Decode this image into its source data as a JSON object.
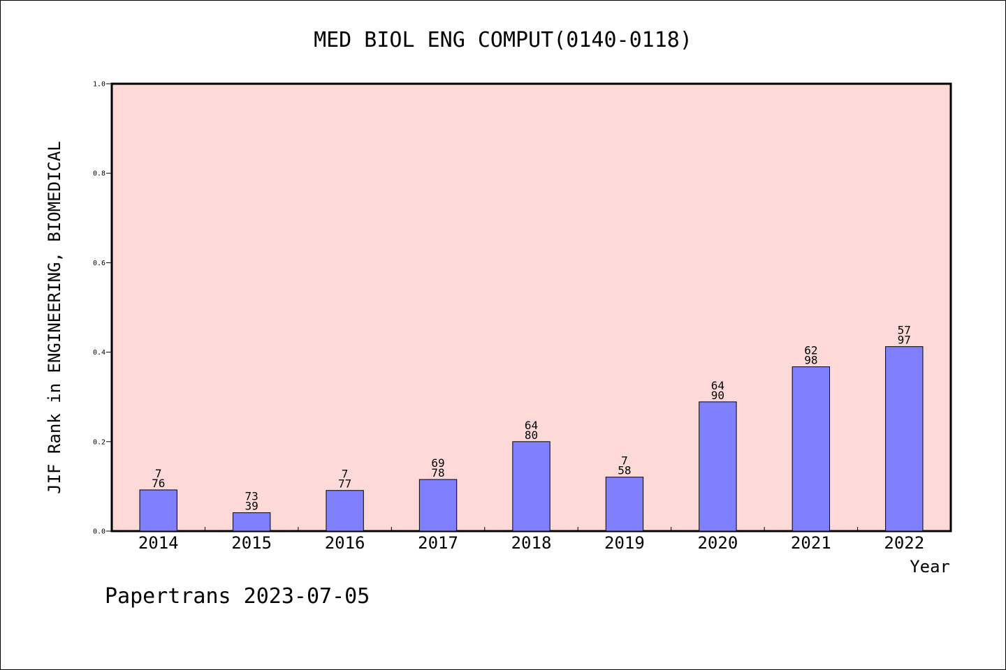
{
  "chart_data": {
    "type": "bar",
    "title": "MED BIOL ENG COMPUT(0140-0118)",
    "ylabel": "JIF Rank in ENGINEERING, BIOMEDICAL",
    "xlabel": "Year",
    "ylim": [
      0,
      1.0
    ],
    "yticks": [
      "0.0",
      "0.2",
      "0.4",
      "0.6",
      "0.8",
      "1.0"
    ],
    "ytick_values": [
      0,
      0.2,
      0.4,
      0.6,
      0.8,
      1.0
    ],
    "categories": [
      "2014",
      "2015",
      "2016",
      "2017",
      "2018",
      "2019",
      "2020",
      "2021",
      "2022"
    ],
    "values": [
      0.0921,
      0.0411,
      0.0909,
      0.1154,
      0.2,
      0.1207,
      0.2889,
      0.3673,
      0.4124
    ],
    "bar_labels": [
      [
        "7",
        "76"
      ],
      [
        "73",
        "39"
      ],
      [
        "7",
        "77"
      ],
      [
        "69",
        "78"
      ],
      [
        "64",
        "80"
      ],
      [
        "7",
        "58"
      ],
      [
        "64",
        "90"
      ],
      [
        "62",
        "98"
      ],
      [
        "57",
        "97"
      ]
    ],
    "grid": false,
    "plot_background": "#fddad8",
    "bar_color": "#8080ff"
  },
  "footer": {
    "text": "Papertrans 2023-07-05"
  }
}
